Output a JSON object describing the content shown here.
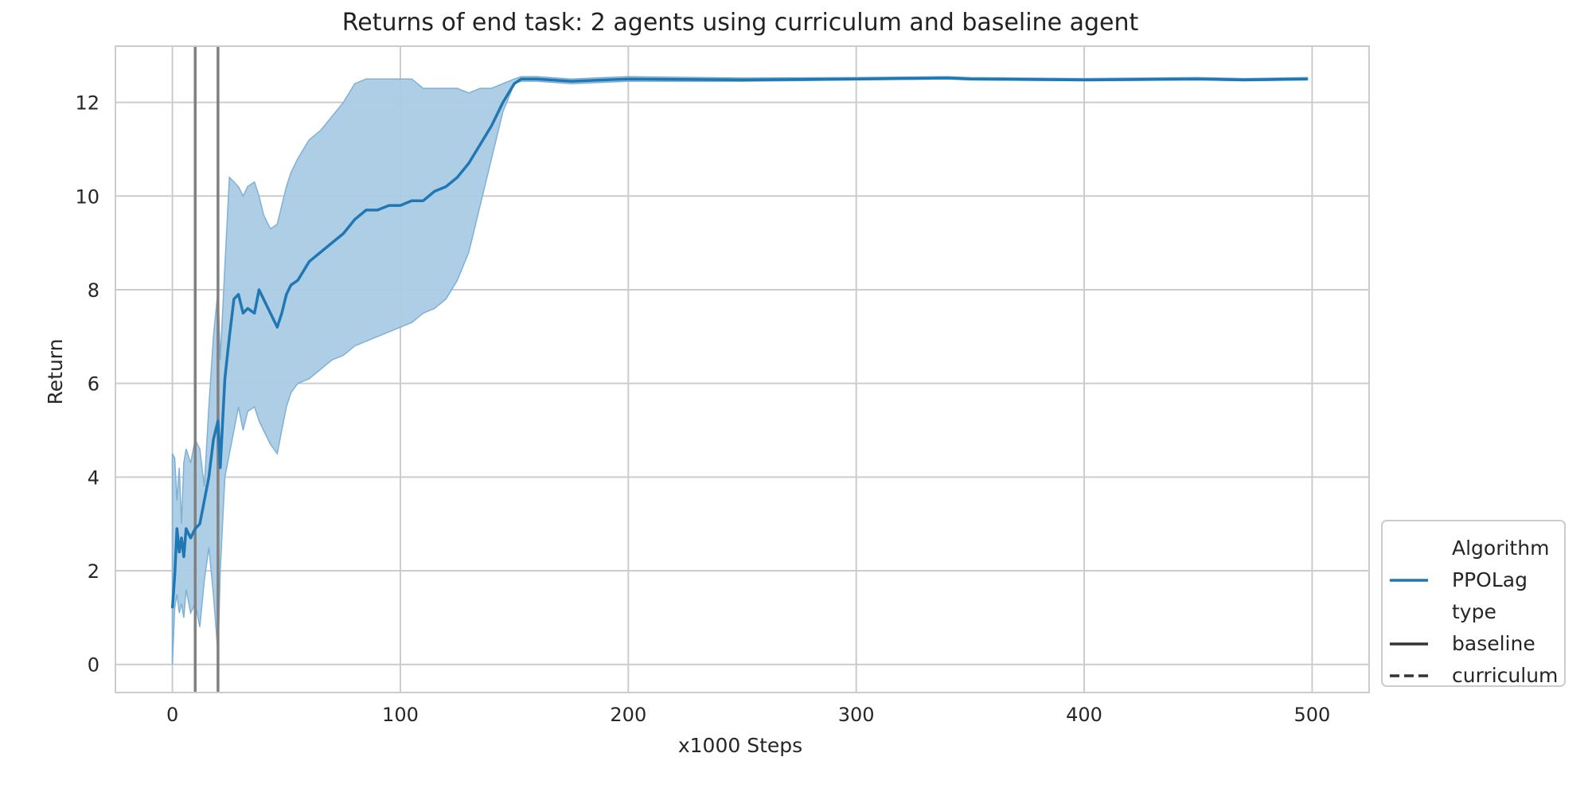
{
  "chart_data": {
    "type": "line",
    "title": "Returns of end task: 2 agents using curriculum and baseline agent",
    "xlabel": "x1000 Steps",
    "ylabel": "Return",
    "xlim": [
      -25,
      525
    ],
    "ylim": [
      -0.6,
      13.2
    ],
    "xticks": [
      0,
      100,
      200,
      300,
      400,
      500
    ],
    "yticks": [
      0,
      2,
      4,
      6,
      8,
      10,
      12
    ],
    "grid": true,
    "legend": {
      "placement": "lower-right outside",
      "entries": [
        {
          "label": "Algorithm",
          "style": "header"
        },
        {
          "label": "PPOLag",
          "style": "line",
          "color": "#1f77b4"
        },
        {
          "label": "type",
          "style": "header"
        },
        {
          "label": "baseline",
          "style": "solid",
          "color": "#333333"
        },
        {
          "label": "curriculum",
          "style": "dashed",
          "color": "#333333"
        }
      ]
    },
    "vlines": [
      10,
      20
    ],
    "vline_color": "#808080",
    "series": [
      {
        "name": "PPOLag",
        "color": "#1f77b4",
        "band_color": "#aacbe4",
        "x": [
          0,
          1,
          2,
          3,
          4,
          5,
          6,
          8,
          10,
          12,
          14,
          16,
          18,
          20,
          21,
          23,
          25,
          27,
          29,
          31,
          33,
          36,
          38,
          40,
          43,
          46,
          48,
          50,
          52,
          55,
          60,
          65,
          70,
          75,
          80,
          85,
          90,
          95,
          100,
          105,
          110,
          115,
          120,
          125,
          130,
          135,
          140,
          145,
          150,
          153,
          160,
          175,
          200,
          250,
          300,
          340,
          350,
          400,
          450,
          470,
          498
        ],
        "mean": [
          1.2,
          1.9,
          2.9,
          2.4,
          2.7,
          2.3,
          2.9,
          2.7,
          2.9,
          3.0,
          3.5,
          4.0,
          4.8,
          5.2,
          4.2,
          6.1,
          7.0,
          7.8,
          7.9,
          7.5,
          7.6,
          7.5,
          8.0,
          7.8,
          7.5,
          7.2,
          7.5,
          7.9,
          8.1,
          8.2,
          8.6,
          8.8,
          9.0,
          9.2,
          9.5,
          9.7,
          9.7,
          9.8,
          9.8,
          9.9,
          9.9,
          10.1,
          10.2,
          10.4,
          10.7,
          11.1,
          11.5,
          12.0,
          12.4,
          12.5,
          12.5,
          12.45,
          12.5,
          12.48,
          12.5,
          12.52,
          12.5,
          12.48,
          12.5,
          12.48,
          12.5
        ],
        "lower": [
          0.0,
          1.2,
          1.5,
          1.1,
          1.3,
          1.0,
          1.6,
          1.1,
          1.3,
          0.8,
          1.8,
          2.5,
          1.5,
          0.2,
          2.0,
          4.0,
          4.5,
          5.0,
          5.5,
          5.0,
          5.4,
          5.5,
          5.2,
          5.0,
          4.7,
          4.5,
          5.0,
          5.5,
          5.8,
          6.0,
          6.1,
          6.3,
          6.5,
          6.6,
          6.8,
          6.9,
          7.0,
          7.1,
          7.2,
          7.3,
          7.5,
          7.6,
          7.8,
          8.2,
          8.8,
          9.8,
          10.8,
          11.8,
          12.4,
          12.45,
          12.45,
          12.4,
          12.45,
          12.45,
          12.48,
          12.5,
          12.48,
          12.46,
          12.48,
          12.46,
          12.48
        ],
        "upper": [
          4.5,
          4.4,
          3.5,
          4.2,
          3.0,
          4.3,
          4.6,
          4.3,
          4.8,
          4.6,
          3.8,
          5.5,
          7.0,
          8.0,
          6.5,
          8.5,
          10.4,
          10.3,
          10.2,
          10.0,
          10.2,
          10.3,
          10.0,
          9.6,
          9.3,
          9.4,
          9.8,
          10.2,
          10.5,
          10.8,
          11.2,
          11.4,
          11.7,
          12.0,
          12.4,
          12.5,
          12.5,
          12.5,
          12.5,
          12.5,
          12.3,
          12.3,
          12.3,
          12.3,
          12.2,
          12.3,
          12.3,
          12.4,
          12.5,
          12.55,
          12.55,
          12.5,
          12.55,
          12.52,
          12.53,
          12.55,
          12.53,
          12.51,
          12.53,
          12.51,
          12.53
        ]
      }
    ]
  }
}
